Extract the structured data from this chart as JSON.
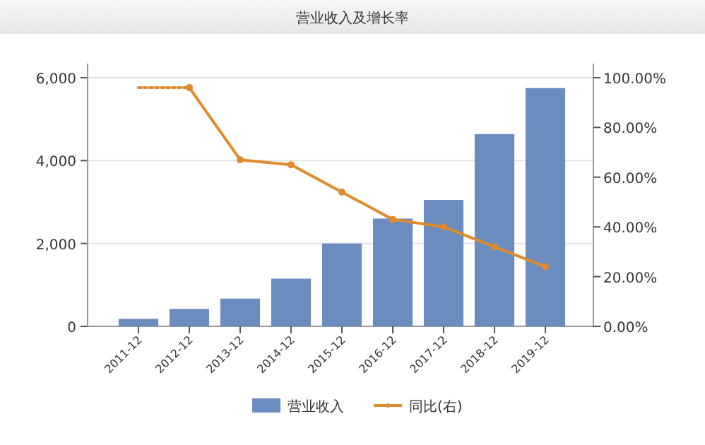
{
  "chart_data": {
    "type": "bar",
    "title": "营业收入及增长率",
    "categories": [
      "2011-12",
      "2012-12",
      "2013-12",
      "2014-12",
      "2015-12",
      "2016-12",
      "2017-12",
      "2018-12",
      "2019-12"
    ],
    "series": [
      {
        "name": "营业收入",
        "color": "#6b8cbf",
        "values": [
          180,
          420,
          670,
          1150,
          2000,
          2600,
          3050,
          4640,
          5750
        ]
      },
      {
        "name": "同比(右)",
        "type": "line",
        "axis": "y2",
        "color": "#e08a2e",
        "marker": "circle",
        "line_style": "solid",
        "values": [
          null,
          96,
          67,
          65,
          54,
          43,
          40,
          32,
          24
        ]
      },
      {
        "type": "line",
        "axis": "y2",
        "color": "#e08a2e",
        "marker": "none",
        "line_style": "dotted",
        "values": [
          96,
          96,
          null,
          null,
          null,
          null,
          null,
          null,
          null
        ]
      }
    ],
    "ylim": [
      0,
      6000
    ],
    "yticks": [
      {
        "value": 0,
        "label": "0"
      },
      {
        "value": 2000,
        "label": "2,000"
      },
      {
        "value": 4000,
        "label": "4,000"
      },
      {
        "value": 6000,
        "label": "6,000"
      }
    ],
    "y2lim": [
      0,
      100
    ],
    "y2ticks": [
      {
        "value": 0,
        "label": "0.00%"
      },
      {
        "value": 20,
        "label": "20.00%"
      },
      {
        "value": 40,
        "label": "40.00%"
      },
      {
        "value": 60,
        "label": "60.00%"
      },
      {
        "value": 80,
        "label": "80.00%"
      },
      {
        "value": 100,
        "label": "100.00%"
      }
    ],
    "grid": "y",
    "legend": "bottom"
  }
}
